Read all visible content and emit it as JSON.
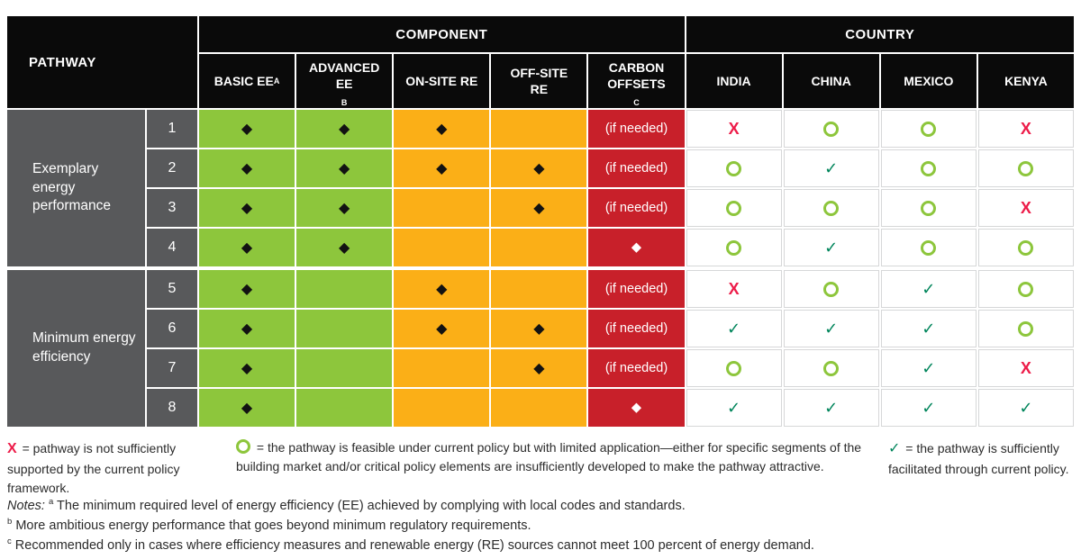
{
  "colors": {
    "black": "#0a0a0a",
    "gray": "#58595b",
    "green": "#8dc63c",
    "yellow": "#fbaf17",
    "red": "#c8202a",
    "xpink": "#ed1c49",
    "teal": "#00855b",
    "gridline": "#d6d7d8",
    "text": "#2b2b2b"
  },
  "header": {
    "pathway": "PATHWAY",
    "component": "COMPONENT",
    "country": "COUNTRY",
    "component_cols": [
      "BASIC EE",
      "ADVANCED EE",
      "ON-SITE RE",
      "OFF-SITE RE",
      "CARBON OFFSETS"
    ],
    "component_sups": [
      "A",
      "B",
      "",
      "",
      "C"
    ],
    "country_cols": [
      "INDIA",
      "CHINA",
      "MEXICO",
      "KENYA"
    ]
  },
  "groups": [
    {
      "label": "Exemplary energy performance"
    },
    {
      "label": "Minimum energy efficiency"
    }
  ],
  "rows": [
    {
      "num": "1",
      "basic": "◆",
      "advanced": "◆",
      "onsite": "◆",
      "offsite": "",
      "carbon": "(if needed)",
      "india": "x",
      "china": "o",
      "mexico": "o",
      "kenya": "x"
    },
    {
      "num": "2",
      "basic": "◆",
      "advanced": "◆",
      "onsite": "◆",
      "offsite": "◆",
      "carbon": "(if needed)",
      "india": "o",
      "china": "check",
      "mexico": "o",
      "kenya": "o"
    },
    {
      "num": "3",
      "basic": "◆",
      "advanced": "◆",
      "onsite": "",
      "offsite": "◆",
      "carbon": "(if needed)",
      "india": "o",
      "china": "o",
      "mexico": "o",
      "kenya": "x"
    },
    {
      "num": "4",
      "basic": "◆",
      "advanced": "◆",
      "onsite": "",
      "offsite": "",
      "carbon": "◆",
      "india": "o",
      "china": "check",
      "mexico": "o",
      "kenya": "o"
    },
    {
      "num": "5",
      "basic": "◆",
      "advanced": "",
      "onsite": "◆",
      "offsite": "",
      "carbon": "(if needed)",
      "india": "x",
      "china": "o",
      "mexico": "check",
      "kenya": "o"
    },
    {
      "num": "6",
      "basic": "◆",
      "advanced": "",
      "onsite": "◆",
      "offsite": "◆",
      "carbon": "(if needed)",
      "india": "check",
      "china": "check",
      "mexico": "check",
      "kenya": "o"
    },
    {
      "num": "7",
      "basic": "◆",
      "advanced": "",
      "onsite": "",
      "offsite": "◆",
      "carbon": "(if needed)",
      "india": "o",
      "china": "o",
      "mexico": "check",
      "kenya": "x"
    },
    {
      "num": "8",
      "basic": "◆",
      "advanced": "",
      "onsite": "",
      "offsite": "",
      "carbon": "◆",
      "india": "check",
      "china": "check",
      "mexico": "check",
      "kenya": "check"
    }
  ],
  "legend": {
    "x_symbol": "X",
    "x_text": "= pathway is not sufficiently supported by the current policy framework.",
    "o_text": "= the pathway is feasible under current policy but with limited application—either for specific segments of the building market and/or critical policy elements are insufficiently developed to make the pathway attractive.",
    "check_symbol": "✓",
    "check_text": "= the pathway is sufficiently facilitated through current policy."
  },
  "notes": {
    "label": "Notes:",
    "a_sup": "a",
    "a_text": "The minimum required level of energy efficiency (EE) achieved by complying with local codes and standards.",
    "b_sup": "b",
    "b_text": "More ambitious energy performance that goes beyond minimum regulatory requirements.",
    "c_sup": "c",
    "c_text": "Recommended only in cases where efficiency measures and renewable energy (RE) sources cannot meet 100 percent of energy demand."
  },
  "chart_data": {
    "type": "table",
    "title": "Pathways by component and country feasibility",
    "column_groups": [
      "COMPONENT",
      "COUNTRY"
    ],
    "columns": [
      "BASIC EE",
      "ADVANCED EE",
      "ON-SITE RE",
      "OFF-SITE RE",
      "CARBON OFFSETS",
      "INDIA",
      "CHINA",
      "MEXICO",
      "KENYA"
    ],
    "row_groups": [
      {
        "label": "Exemplary energy performance",
        "pathways": [
          1,
          2,
          3,
          4
        ]
      },
      {
        "label": "Minimum energy efficiency",
        "pathways": [
          5,
          6,
          7,
          8
        ]
      }
    ],
    "rows": [
      {
        "pathway": 1,
        "components": [
          "◆",
          "◆",
          "◆",
          "",
          "(if needed)"
        ],
        "countries": [
          "X",
          "O",
          "O",
          "X"
        ]
      },
      {
        "pathway": 2,
        "components": [
          "◆",
          "◆",
          "◆",
          "◆",
          "(if needed)"
        ],
        "countries": [
          "O",
          "✓",
          "O",
          "O"
        ]
      },
      {
        "pathway": 3,
        "components": [
          "◆",
          "◆",
          "",
          "◆",
          "(if needed)"
        ],
        "countries": [
          "O",
          "O",
          "O",
          "X"
        ]
      },
      {
        "pathway": 4,
        "components": [
          "◆",
          "◆",
          "",
          "",
          "◆"
        ],
        "countries": [
          "O",
          "✓",
          "O",
          "O"
        ]
      },
      {
        "pathway": 5,
        "components": [
          "◆",
          "",
          "◆",
          "",
          "(if needed)"
        ],
        "countries": [
          "X",
          "O",
          "✓",
          "O"
        ]
      },
      {
        "pathway": 6,
        "components": [
          "◆",
          "",
          "◆",
          "◆",
          "(if needed)"
        ],
        "countries": [
          "✓",
          "✓",
          "✓",
          "O"
        ]
      },
      {
        "pathway": 7,
        "components": [
          "◆",
          "",
          "",
          "◆",
          "(if needed)"
        ],
        "countries": [
          "O",
          "O",
          "✓",
          "X"
        ]
      },
      {
        "pathway": 8,
        "components": [
          "◆",
          "",
          "",
          "",
          "◆"
        ],
        "countries": [
          "✓",
          "✓",
          "✓",
          "✓"
        ]
      }
    ],
    "legend_meaning": {
      "X": "pathway is not sufficiently supported by the current policy framework",
      "O": "pathway is feasible under current policy but with limited application",
      "✓": "pathway is sufficiently facilitated through current policy"
    }
  }
}
